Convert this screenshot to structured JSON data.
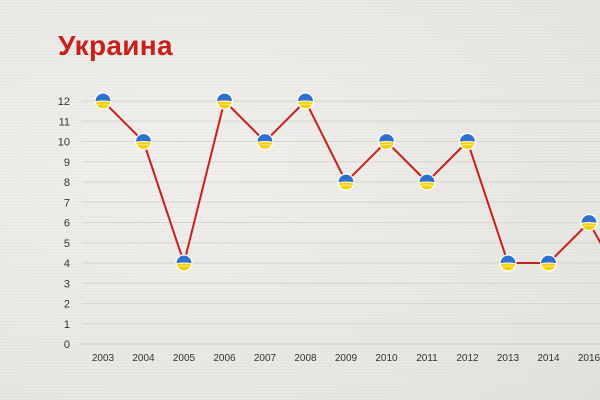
{
  "title": "Украина",
  "colors": {
    "title": "#c8201d",
    "line": "#c8201d",
    "flag_blue": "#2f6fce",
    "flag_yellow": "#f4d000",
    "grid": "#d6d5d1"
  },
  "chart_data": {
    "type": "line",
    "title": "Украина",
    "xlabel": "",
    "ylabel": "",
    "categories": [
      "2003",
      "2004",
      "2005",
      "2006",
      "2007",
      "2008",
      "2009",
      "2010",
      "2011",
      "2012",
      "2013",
      "2014",
      "2016"
    ],
    "values": [
      12,
      10,
      4,
      12,
      10,
      12,
      8,
      10,
      8,
      10,
      4,
      4,
      6
    ],
    "ylim": [
      0,
      12
    ],
    "yticks": [
      0,
      1,
      2,
      3,
      4,
      5,
      6,
      7,
      8,
      9,
      10,
      11,
      12
    ],
    "marker": "ukraine-flag-icon",
    "grid": true
  }
}
